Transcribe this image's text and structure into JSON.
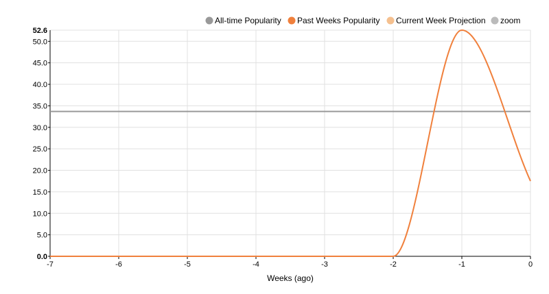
{
  "chart_data": {
    "type": "line",
    "xlabel": "Weeks (ago)",
    "x_ticks": [
      -7,
      -6,
      -5,
      -4,
      -3,
      -2,
      -1,
      0
    ],
    "y_ticks": [
      0.0,
      5.0,
      10.0,
      15.0,
      20.0,
      25.0,
      30.0,
      35.0,
      40.0,
      45.0,
      50.0
    ],
    "y_tick_labels": [
      "0.0",
      "5.0",
      "10.0",
      "15.0",
      "20.0",
      "25.0",
      "30.0",
      "35.0",
      "40.0",
      "45.0",
      "50.0"
    ],
    "y_max_label": "52.6",
    "xlim": [
      -7,
      0
    ],
    "ylim": [
      0,
      52.6
    ],
    "grid": true,
    "legend_position": "top-right",
    "legend": [
      {
        "label": "All-time Popularity",
        "color": "#999999"
      },
      {
        "label": "Past Weeks Popularity",
        "color": "#f0803c"
      },
      {
        "label": "Current Week Projection",
        "color": "#f5c08f"
      },
      {
        "label": "zoom",
        "color": "#bbbbbb"
      }
    ],
    "series": [
      {
        "name": "All-time Popularity",
        "color": "#999999",
        "x": [
          -7,
          0
        ],
        "y": [
          33.7,
          33.7
        ]
      },
      {
        "name": "Past Weeks Popularity",
        "color": "#f0803c",
        "x": [
          -7,
          -6,
          -5,
          -4,
          -3,
          -2,
          -1,
          0
        ],
        "y": [
          0,
          0,
          0,
          0,
          0,
          0,
          52.6,
          17.5
        ]
      }
    ]
  }
}
